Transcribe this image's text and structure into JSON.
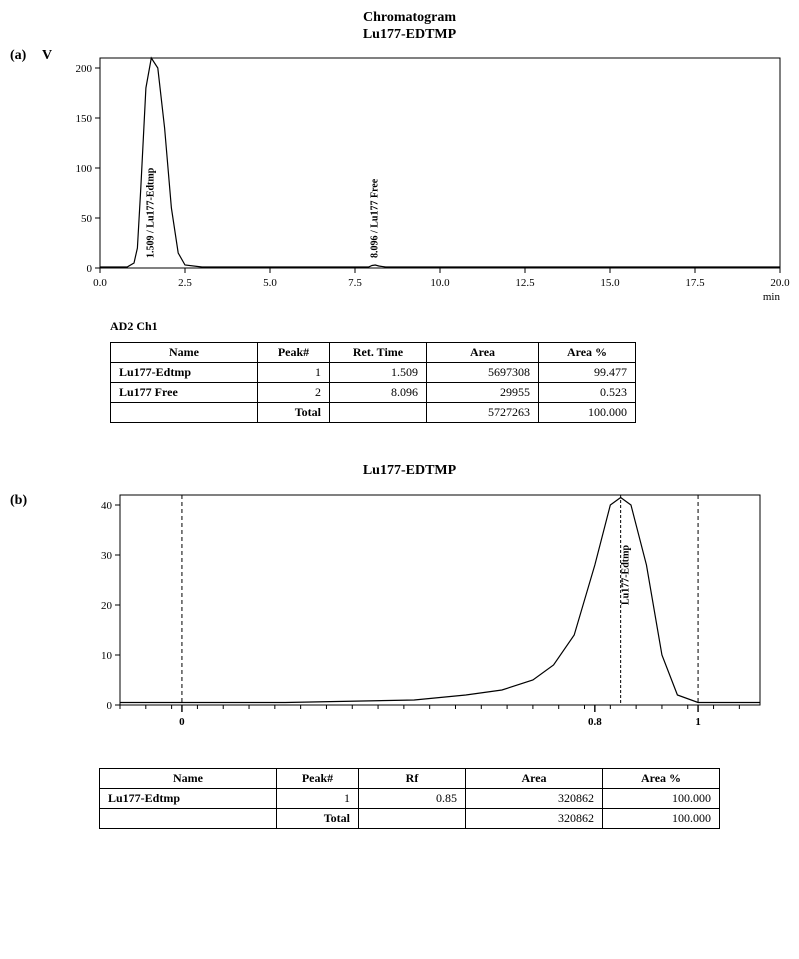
{
  "header": {
    "line1": "Chromatogram",
    "line2": "Lu177-EDTMP"
  },
  "panel_a": {
    "label": "(a)",
    "y_axis_label": "V",
    "chart": {
      "type": "line",
      "background_color": "#ffffff",
      "line_color": "#000000",
      "line_width": 1.2,
      "xlim": [
        0.0,
        20.0
      ],
      "ylim": [
        0,
        210
      ],
      "x_ticks": [
        0.0,
        2.5,
        5.0,
        7.5,
        10.0,
        12.5,
        15.0,
        17.5,
        20.0
      ],
      "y_ticks": [
        0,
        50,
        100,
        150,
        200
      ],
      "x_unit": "min",
      "tick_font_size": 11,
      "peak_labels": [
        {
          "x": 1.509,
          "text": "1.509 / Lu177-Edtmp"
        },
        {
          "x": 8.096,
          "text": "8.096 / Lu177 Free"
        }
      ],
      "trace": [
        {
          "x": 0.0,
          "y": 1
        },
        {
          "x": 0.8,
          "y": 1
        },
        {
          "x": 1.0,
          "y": 5
        },
        {
          "x": 1.1,
          "y": 20
        },
        {
          "x": 1.2,
          "y": 80
        },
        {
          "x": 1.35,
          "y": 180
        },
        {
          "x": 1.509,
          "y": 210
        },
        {
          "x": 1.7,
          "y": 200
        },
        {
          "x": 1.9,
          "y": 140
        },
        {
          "x": 2.1,
          "y": 60
        },
        {
          "x": 2.3,
          "y": 15
        },
        {
          "x": 2.5,
          "y": 3
        },
        {
          "x": 3.0,
          "y": 1
        },
        {
          "x": 7.9,
          "y": 1
        },
        {
          "x": 8.0,
          "y": 2.5
        },
        {
          "x": 8.096,
          "y": 3
        },
        {
          "x": 8.2,
          "y": 2
        },
        {
          "x": 8.4,
          "y": 1
        },
        {
          "x": 20.0,
          "y": 1
        }
      ]
    },
    "table_caption": "AD2 Ch1",
    "table": {
      "columns": [
        "Name",
        "Peak#",
        "Ret. Time",
        "Area",
        "Area %"
      ],
      "rows": [
        [
          "Lu177-Edtmp",
          "1",
          "1.509",
          "5697308",
          "99.477"
        ],
        [
          "Lu177 Free",
          "2",
          "8.096",
          "29955",
          "0.523"
        ],
        [
          "",
          "Total",
          "",
          "5727263",
          "100.000"
        ]
      ]
    }
  },
  "panel_b": {
    "label": "(b)",
    "title": "Lu177-EDTMP",
    "chart": {
      "type": "line",
      "background_color": "#ffffff",
      "line_color": "#000000",
      "line_width": 1.2,
      "xlim": [
        -0.12,
        1.12
      ],
      "ylim": [
        0,
        42
      ],
      "x_ticks_major": [
        0,
        0.8,
        1
      ],
      "x_ticks_minor_step": 0.05,
      "y_ticks": [
        0,
        10,
        20,
        30,
        40
      ],
      "tick_font_size": 11,
      "peak_labels": [
        {
          "x": 0.85,
          "text": "Lu177-Edtmp"
        }
      ],
      "ref_lines_x": [
        0,
        1
      ],
      "trace": [
        {
          "x": -0.12,
          "y": 0.5
        },
        {
          "x": 0.2,
          "y": 0.5
        },
        {
          "x": 0.45,
          "y": 1
        },
        {
          "x": 0.55,
          "y": 2
        },
        {
          "x": 0.62,
          "y": 3
        },
        {
          "x": 0.68,
          "y": 5
        },
        {
          "x": 0.72,
          "y": 8
        },
        {
          "x": 0.76,
          "y": 14
        },
        {
          "x": 0.8,
          "y": 28
        },
        {
          "x": 0.83,
          "y": 40
        },
        {
          "x": 0.85,
          "y": 41.5
        },
        {
          "x": 0.87,
          "y": 40
        },
        {
          "x": 0.9,
          "y": 28
        },
        {
          "x": 0.93,
          "y": 10
        },
        {
          "x": 0.96,
          "y": 2
        },
        {
          "x": 1.0,
          "y": 0.5
        },
        {
          "x": 1.12,
          "y": 0.5
        }
      ]
    },
    "table": {
      "columns": [
        "Name",
        "Peak#",
        "Rf",
        "Area",
        "Area %"
      ],
      "rows": [
        [
          "Lu177-Edtmp",
          "1",
          "0.85",
          "320862",
          "100.000"
        ],
        [
          "",
          "Total",
          "",
          "320862",
          "100.000"
        ]
      ]
    }
  }
}
